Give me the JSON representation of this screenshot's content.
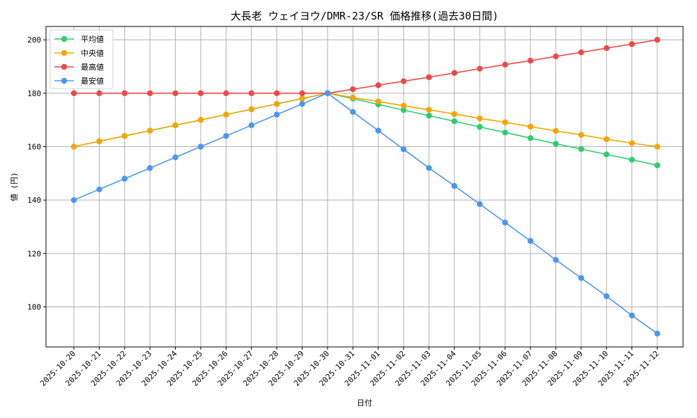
{
  "chart_data": {
    "type": "line",
    "title": "大長老 ウェイヨウ/DMR-23/SR 価格推移(過去30日間)",
    "xlabel": "日付",
    "ylabel": "値 (円)",
    "grid": true,
    "legend_position": "top-left",
    "ylim": [
      85,
      205
    ],
    "yticks": [
      100,
      120,
      140,
      160,
      180,
      200
    ],
    "categories": [
      "2025-10-20",
      "2025-10-21",
      "2025-10-22",
      "2025-10-23",
      "2025-10-24",
      "2025-10-25",
      "2025-10-26",
      "2025-10-27",
      "2025-10-28",
      "2025-10-29",
      "2025-10-30",
      "2025-10-31",
      "2025-11-01",
      "2025-11-02",
      "2025-11-03",
      "2025-11-04",
      "2025-11-05",
      "2025-11-06",
      "2025-11-07",
      "2025-11-08",
      "2025-11-09",
      "2025-11-10",
      "2025-11-11",
      "2025-11-12"
    ],
    "series": [
      {
        "name": "平均値",
        "color": "#2ecc71",
        "values": [
          160,
          162,
          164,
          166,
          168,
          170,
          172,
          174,
          176,
          178,
          180,
          178,
          175.8,
          173.7,
          171.6,
          169.5,
          167.4,
          165.3,
          163.2,
          161.1,
          159.1,
          157.1,
          155.1,
          153
        ]
      },
      {
        "name": "中央値",
        "color": "#f5a500",
        "values": [
          160,
          162,
          164,
          166,
          168,
          170,
          172,
          174,
          176,
          178,
          180,
          178.4,
          176.9,
          175.3,
          173.8,
          172.2,
          170.6,
          169.1,
          167.5,
          165.9,
          164.4,
          162.8,
          161.3,
          160
        ]
      },
      {
        "name": "最高値",
        "color": "#f04848",
        "values": [
          180,
          180,
          180,
          180,
          180,
          180,
          180,
          180,
          180,
          180,
          180,
          181.5,
          183,
          184.5,
          186,
          187.6,
          189.2,
          190.7,
          192.2,
          193.8,
          195.3,
          196.9,
          198.4,
          200
        ]
      },
      {
        "name": "最安値",
        "color": "#4a96f0",
        "values": [
          140,
          144,
          148,
          152,
          156,
          160,
          164,
          168,
          172,
          176,
          180,
          173,
          166,
          159,
          152,
          145.3,
          138.5,
          131.6,
          124.7,
          117.6,
          110.8,
          104,
          96.8,
          90
        ]
      }
    ]
  }
}
